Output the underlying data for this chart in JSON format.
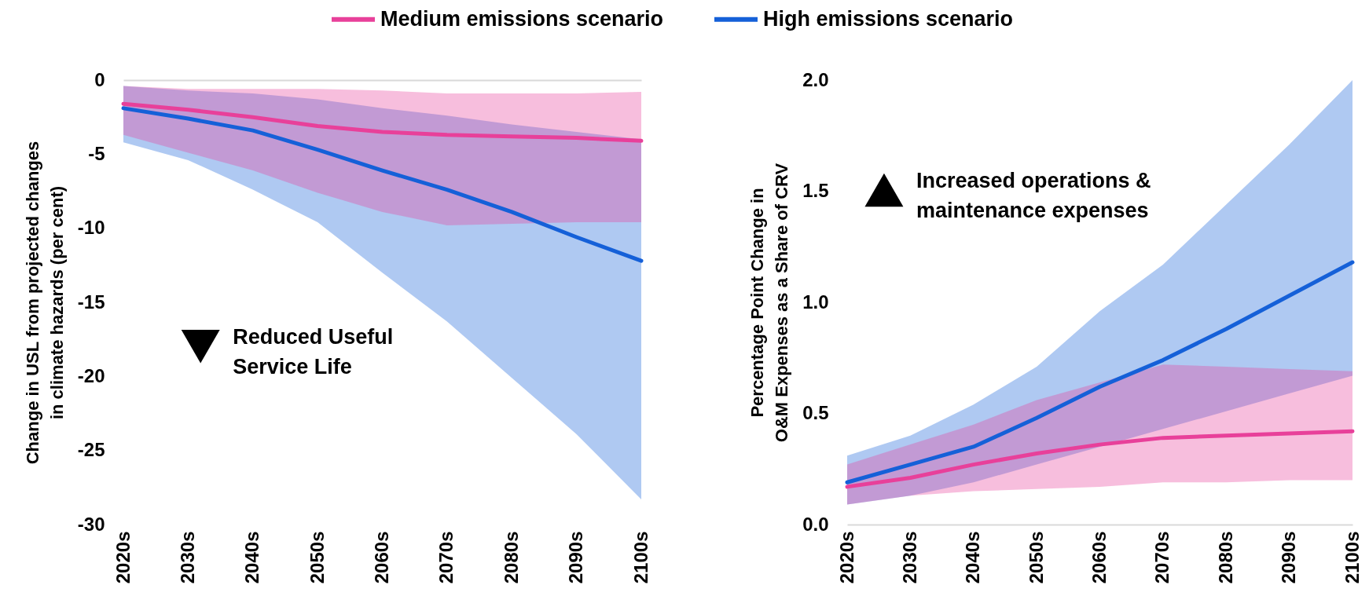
{
  "chart_data": [
    {
      "type": "line",
      "ylabel": "Change in USL from projected changes\nin climate hazards (per cent)",
      "categories": [
        "2020s",
        "2030s",
        "2040s",
        "2050s",
        "2060s",
        "2070s",
        "2080s",
        "2090s",
        "2100s"
      ],
      "series": [
        {
          "name": "Medium emissions scenario",
          "color": "#e8409a",
          "values": [
            -1.6,
            -2.0,
            -2.5,
            -3.1,
            -3.5,
            -3.7,
            -3.8,
            -3.9,
            -4.1
          ],
          "lower": [
            -3.7,
            -4.9,
            -6.1,
            -7.6,
            -8.9,
            -9.8,
            -9.7,
            -9.6,
            -9.6
          ],
          "upper": [
            -0.4,
            -0.6,
            -0.6,
            -0.6,
            -0.7,
            -0.9,
            -0.9,
            -0.9,
            -0.8
          ]
        },
        {
          "name": "High emissions scenario",
          "color": "#1560d8",
          "values": [
            -1.9,
            -2.6,
            -3.4,
            -4.7,
            -6.1,
            -7.4,
            -8.9,
            -10.6,
            -12.2
          ],
          "lower": [
            -4.2,
            -5.4,
            -7.4,
            -9.6,
            -13.0,
            -16.3,
            -20.1,
            -23.9,
            -28.3
          ],
          "upper": [
            -0.4,
            -0.7,
            -0.9,
            -1.3,
            -1.9,
            -2.4,
            -3.0,
            -3.5,
            -4.0
          ]
        }
      ],
      "ylim": [
        -30,
        0
      ],
      "yticks": [
        -30,
        -25,
        -20,
        -15,
        -10,
        -5,
        0
      ],
      "grid": false,
      "legend": "top",
      "annotations": [
        "Reduced Useful\nService Life"
      ]
    },
    {
      "type": "line",
      "ylabel": "Percentage Point Change in\nO&M Expenses as a Share of CRV",
      "categories": [
        "2020s",
        "2030s",
        "2040s",
        "2050s",
        "2060s",
        "2070s",
        "2080s",
        "2090s",
        "2100s"
      ],
      "series": [
        {
          "name": "Medium emissions scenario",
          "color": "#e8409a",
          "values": [
            0.17,
            0.21,
            0.27,
            0.32,
            0.36,
            0.39,
            0.4,
            0.41,
            0.42
          ],
          "lower": [
            0.09,
            0.13,
            0.15,
            0.16,
            0.17,
            0.19,
            0.19,
            0.2,
            0.2
          ],
          "upper": [
            0.27,
            0.36,
            0.45,
            0.56,
            0.64,
            0.72,
            0.71,
            0.7,
            0.69
          ]
        },
        {
          "name": "High emissions scenario",
          "color": "#1560d8",
          "values": [
            0.19,
            0.27,
            0.35,
            0.48,
            0.62,
            0.74,
            0.88,
            1.03,
            1.18
          ],
          "lower": [
            0.09,
            0.13,
            0.19,
            0.27,
            0.35,
            0.43,
            0.51,
            0.59,
            0.67
          ],
          "upper": [
            0.31,
            0.4,
            0.54,
            0.71,
            0.96,
            1.17,
            1.44,
            1.71,
            2.0
          ]
        }
      ],
      "ylim": [
        0,
        2.0
      ],
      "yticks": [
        {
          "value": 0,
          "label": "0.0"
        },
        {
          "value": 0.5,
          "label": "0.5"
        },
        {
          "value": 1.0,
          "label": "1.0"
        },
        {
          "value": 1.5,
          "label": "1.5"
        },
        {
          "value": 2.0,
          "label": "2.0"
        }
      ],
      "grid": false,
      "legend": "top",
      "annotations": [
        "Increased operations &\nmaintenance expenses"
      ]
    }
  ]
}
